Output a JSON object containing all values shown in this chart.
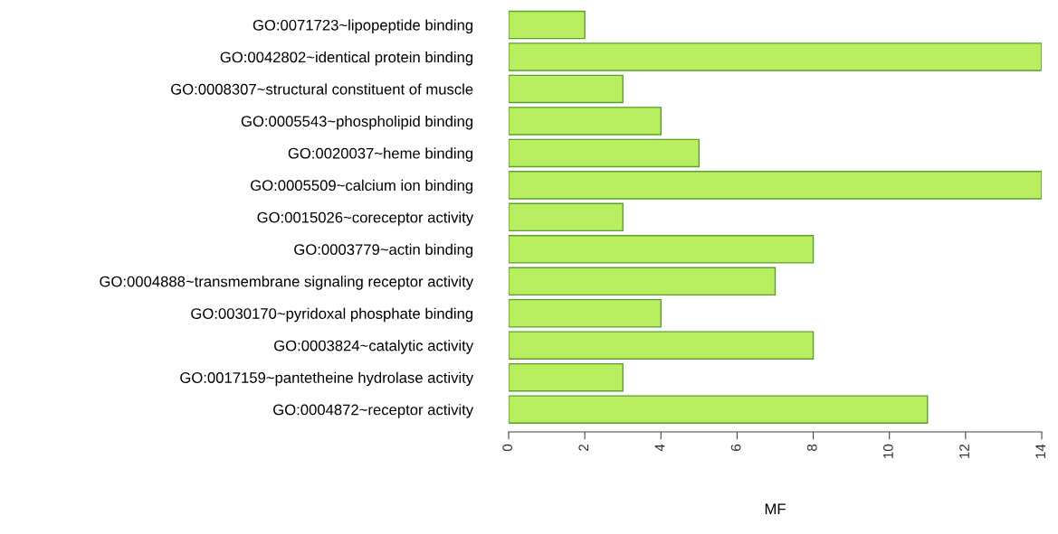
{
  "chart_data": {
    "type": "bar",
    "orientation": "horizontal",
    "xlabel": "MF",
    "categories": [
      "GO:0071723~lipopeptide binding",
      "GO:0042802~identical protein binding",
      "GO:0008307~structural constituent of muscle",
      "GO:0005543~phospholipid binding",
      "GO:0020037~heme binding",
      "GO:0005509~calcium ion binding",
      "GO:0015026~coreceptor activity",
      "GO:0003779~actin binding",
      "GO:0004888~transmembrane signaling receptor activity",
      "GO:0030170~pyridoxal phosphate binding",
      "GO:0003824~catalytic activity",
      "GO:0017159~pantetheine hydrolase activity",
      "GO:0004872~receptor activity"
    ],
    "values": [
      2,
      14,
      3,
      4,
      5,
      14,
      3,
      8,
      7,
      4,
      8,
      3,
      11
    ],
    "color": "#b9ee60",
    "xlim": [
      0,
      14
    ],
    "xticks": [
      0,
      2,
      4,
      6,
      8,
      10,
      12,
      14
    ],
    "grid": false,
    "legend": false
  }
}
